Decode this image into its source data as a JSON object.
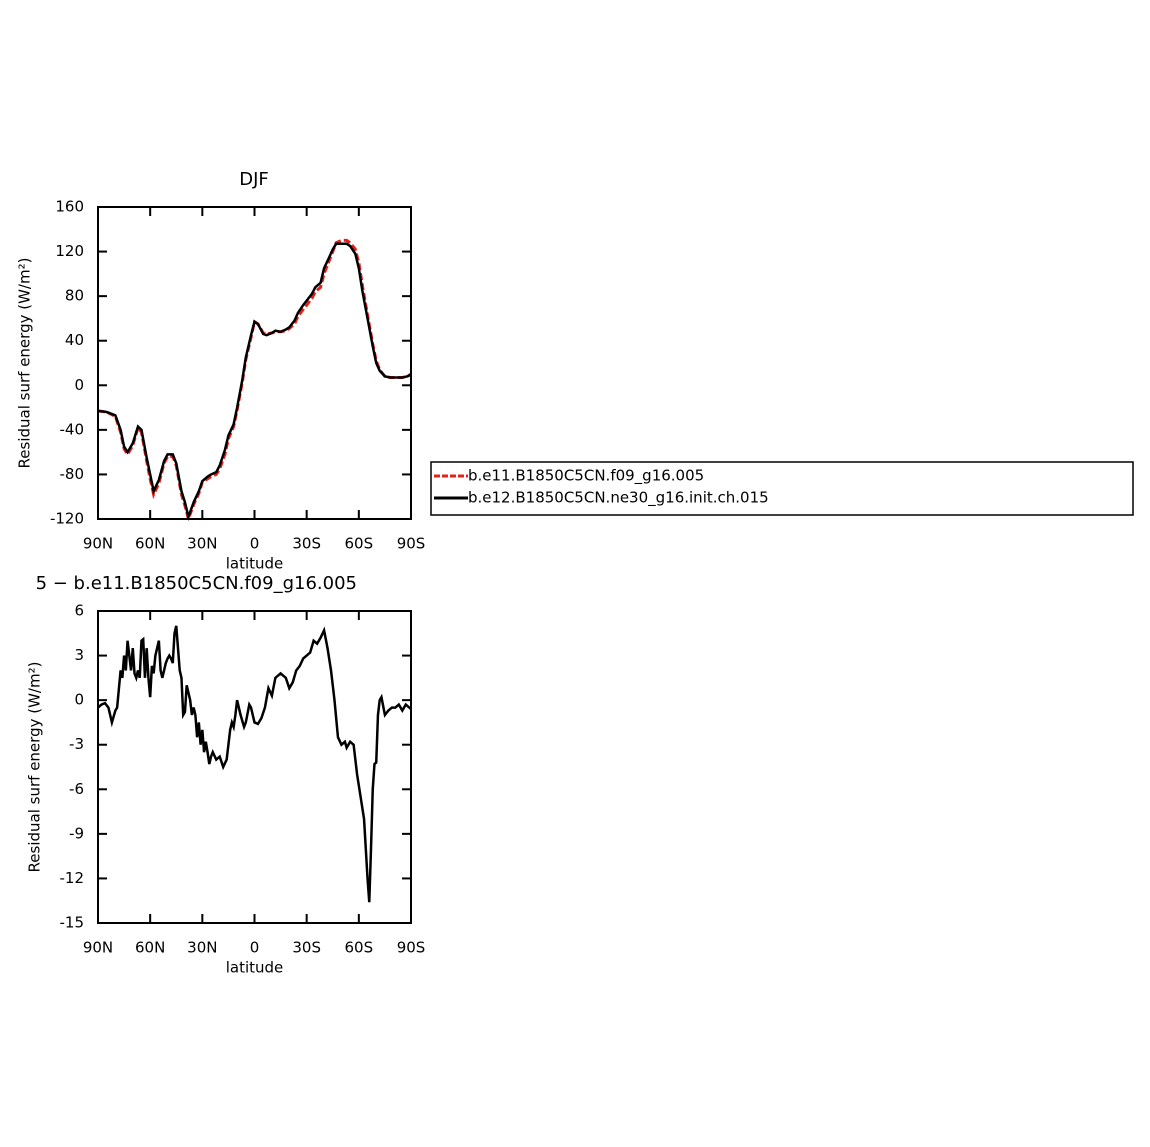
{
  "chart_data": [
    {
      "type": "line",
      "title": "DJF",
      "xlabel": "latitude",
      "ylabel": "Residual surf energy (W/m²)",
      "x": [
        90,
        85,
        80,
        77,
        75,
        73,
        70,
        67,
        65,
        62,
        60,
        58,
        55,
        52,
        50,
        47,
        45,
        42,
        40,
        38,
        35,
        32,
        30,
        27,
        25,
        22,
        20,
        17,
        15,
        12,
        10,
        7,
        5,
        2,
        0,
        -2,
        -5,
        -7,
        -10,
        -12,
        -15,
        -18,
        -20,
        -23,
        -25,
        -28,
        -30,
        -33,
        -35,
        -38,
        -40,
        -43,
        -45,
        -47,
        -50,
        -53,
        -55,
        -58,
        -60,
        -62,
        -65,
        -68,
        -70,
        -72,
        -75,
        -78,
        -80,
        -83,
        -85,
        -88,
        -90
      ],
      "series": [
        {
          "name": "b.e11.B1850C5CN.f09_g16.005",
          "color": "#e8201c",
          "line_style": "dashed",
          "values": [
            -23,
            -24,
            -28,
            -42,
            -57,
            -62,
            -54,
            -38,
            -42,
            -68,
            -84,
            -98,
            -88,
            -70,
            -64,
            -64,
            -72,
            -98,
            -108,
            -120,
            -107,
            -97,
            -87,
            -84,
            -82,
            -80,
            -75,
            -62,
            -48,
            -37,
            -22,
            3,
            23,
            43,
            57,
            55,
            47,
            46,
            47,
            48,
            48,
            49,
            51,
            55,
            62,
            68,
            72,
            78,
            84,
            88,
            100,
            112,
            120,
            128,
            130,
            130,
            128,
            122,
            110,
            90,
            63,
            37,
            22,
            14,
            8,
            7,
            7,
            7,
            7,
            8,
            10
          ]
        },
        {
          "name": "b.e12.B1850C5CN.ne30_g16.init.ch.015",
          "color": "#000000",
          "line_style": "solid",
          "values": [
            -23,
            -24,
            -27,
            -40,
            -55,
            -60,
            -52,
            -37,
            -40,
            -65,
            -80,
            -95,
            -85,
            -68,
            -62,
            -62,
            -70,
            -95,
            -105,
            -118,
            -105,
            -95,
            -86,
            -82,
            -80,
            -78,
            -72,
            -58,
            -45,
            -35,
            -20,
            5,
            25,
            45,
            57,
            55,
            46,
            45,
            47,
            49,
            48,
            50,
            52,
            58,
            65,
            72,
            76,
            82,
            88,
            92,
            105,
            115,
            122,
            127,
            127,
            127,
            125,
            118,
            105,
            85,
            60,
            35,
            20,
            13,
            8,
            7,
            7,
            7,
            7,
            8,
            10
          ]
        }
      ],
      "xlim": [
        90,
        -90
      ],
      "xticks": [
        {
          "value": 90,
          "label": "90N"
        },
        {
          "value": 60,
          "label": "60N"
        },
        {
          "value": 30,
          "label": "30N"
        },
        0,
        {
          "value": -30,
          "label": "30S"
        },
        {
          "value": -60,
          "label": "60S"
        },
        {
          "value": -90,
          "label": "90S"
        }
      ],
      "ylim": [
        -120,
        160
      ],
      "yticks": [
        -120,
        -80,
        -40,
        0,
        40,
        80,
        120,
        160
      ],
      "legend": "right"
    },
    {
      "type": "line",
      "title": "5 − b.e11.B1850C5CN.f09_g16.005",
      "xlabel": "latitude",
      "ylabel": "Residual surf energy (W/m²)",
      "x": [
        90,
        88,
        86,
        84,
        82,
        80,
        79,
        77,
        76,
        75,
        74,
        73,
        72,
        71,
        70,
        69,
        68,
        67,
        66,
        65,
        64,
        63,
        62,
        61,
        60,
        59,
        58,
        57,
        56,
        55,
        54,
        53,
        52,
        51,
        50,
        49,
        48,
        47,
        46,
        45,
        44,
        43,
        42,
        41,
        40,
        39,
        38,
        37,
        36,
        35,
        34,
        33,
        32,
        31,
        30,
        29,
        28,
        27,
        26,
        25,
        24,
        22,
        20,
        18,
        16,
        15,
        14,
        13,
        12,
        11,
        10,
        9,
        8,
        6,
        5,
        3,
        2,
        1,
        0,
        -2,
        -4,
        -6,
        -8,
        -10,
        -12,
        -15,
        -18,
        -20,
        -22,
        -24,
        -26,
        -28,
        -30,
        -32,
        -34,
        -36,
        -38,
        -40,
        -42,
        -44,
        -46,
        -48,
        -50,
        -52,
        -53,
        -55,
        -57,
        -59,
        -61,
        -63,
        -64,
        -65,
        -66,
        -67,
        -68,
        -69,
        -70,
        -71,
        -72,
        -73,
        -75,
        -77,
        -79,
        -81,
        -83,
        -85,
        -87,
        -89,
        -90
      ],
      "series": [
        {
          "name": "",
          "color": "#000000",
          "line_style": "solid",
          "values": [
            -0.5,
            -0.3,
            -0.2,
            -0.5,
            -1.5,
            -0.7,
            -0.5,
            2,
            1.5,
            3,
            2,
            4,
            3,
            2,
            3.5,
            1.8,
            1.5,
            2,
            1.5,
            4,
            4.1,
            1.5,
            3.5,
            1.5,
            0.2,
            2.3,
            1.8,
            3,
            3.5,
            4,
            2,
            1.5,
            2,
            2.5,
            2.8,
            3,
            2.8,
            2.5,
            4.5,
            5,
            3.5,
            2,
            1.5,
            -1,
            -0.8,
            1,
            0.5,
            0,
            -1,
            -0.5,
            -1,
            -2.5,
            -1.5,
            -3,
            -2,
            -3.5,
            -2.8,
            -3.5,
            -4.3,
            -3.8,
            -3.5,
            -4,
            -3.8,
            -4.5,
            -4,
            -3,
            -2,
            -1.5,
            -1.8,
            -1,
            0,
            -0.5,
            -1,
            -1.8,
            -1.5,
            -0.3,
            -0.5,
            -1,
            -1.5,
            -1.6,
            -1.2,
            -0.5,
            0.8,
            0.3,
            1.5,
            1.8,
            1.5,
            0.8,
            1.2,
            2,
            2.3,
            2.8,
            3,
            3.2,
            4,
            3.8,
            4.2,
            4.7,
            3.5,
            2,
            0,
            -2.5,
            -3,
            -2.8,
            -3.2,
            -2.8,
            -3,
            -5,
            -6.5,
            -8,
            -10,
            -12,
            -13.6,
            -10,
            -6,
            -4.3,
            -4.2,
            -1,
            0,
            0.2,
            -1,
            -0.7,
            -0.5,
            -0.5,
            -0.3,
            -0.7,
            -0.3,
            -0.5,
            -0.6
          ]
        }
      ],
      "xlim": [
        90,
        -90
      ],
      "xticks": [
        {
          "value": 90,
          "label": "90N"
        },
        {
          "value": 60,
          "label": "60N"
        },
        {
          "value": 30,
          "label": "30N"
        },
        0,
        {
          "value": -30,
          "label": "30S"
        },
        {
          "value": -60,
          "label": "60S"
        },
        {
          "value": -90,
          "label": "90S"
        }
      ],
      "ylim": [
        -15,
        6
      ],
      "yticks": [
        -15,
        -12,
        -9,
        -6,
        -3,
        0,
        3,
        6
      ]
    }
  ]
}
